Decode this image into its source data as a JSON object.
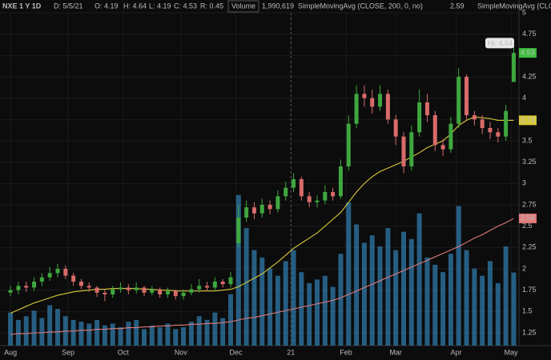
{
  "chart_data": {
    "type": "candlestick",
    "header": [
      "NXE 1 Y 1D",
      "D: 5/5/21",
      "O: 4.19",
      "H: 4.64",
      "L: 4.19",
      "C: 4.53",
      "R: 0.45"
    ],
    "volume_title": "Volume",
    "volume_label": "1,990,619",
    "sma_titles": [
      {
        "label": "SimpleMovingAvg (CLOSE, 200, 0, no)",
        "color": "#e07a7a"
      },
      {
        "label": "2.59",
        "color": "#e07a7a"
      },
      {
        "label": "SimpleMovingAvg (CLOSE,...",
        "color": "#d9c83a"
      }
    ],
    "xlim": [
      -2,
      196
    ],
    "xticks": [
      {
        "value": 2,
        "label": "Aug"
      },
      {
        "value": 24,
        "label": "Sep"
      },
      {
        "value": 45,
        "label": "Oct"
      },
      {
        "value": 67,
        "label": "Nov"
      },
      {
        "value": 88,
        "label": "Dec"
      },
      {
        "value": 109,
        "label": "21"
      },
      {
        "value": 130,
        "label": "Feb"
      },
      {
        "value": 149,
        "label": "Mar"
      },
      {
        "value": 172,
        "label": "Apr"
      },
      {
        "value": 193,
        "label": "May"
      }
    ],
    "ylim": [
      1.1,
      5.15
    ],
    "yticks": [
      1.25,
      1.5,
      1.75,
      2,
      2.25,
      2.5,
      2.75,
      3,
      3.25,
      3.5,
      3.75,
      4,
      4.25,
      4.5,
      4.75,
      5
    ],
    "vlim": [
      0,
      4400000
    ],
    "up_color": "#3fa73f",
    "down_color": "#d96b6b",
    "volume_color": "#2b6d98",
    "x": [
      2,
      5,
      8,
      11,
      14,
      17,
      20,
      23,
      26,
      29,
      32,
      35,
      38,
      41,
      44,
      47,
      50,
      53,
      56,
      59,
      62,
      65,
      68,
      71,
      74,
      77,
      80,
      83,
      86,
      89,
      92,
      95,
      98,
      101,
      104,
      107,
      110,
      113,
      116,
      119,
      122,
      125,
      128,
      131,
      134,
      137,
      140,
      143,
      146,
      149,
      152,
      155,
      158,
      161,
      164,
      167,
      170,
      173,
      176,
      179,
      182,
      185,
      188,
      191,
      194
    ],
    "open": [
      1.72,
      1.75,
      1.8,
      1.78,
      1.85,
      1.9,
      1.95,
      2.0,
      1.92,
      1.85,
      1.8,
      1.78,
      1.72,
      1.7,
      1.76,
      1.78,
      1.75,
      1.78,
      1.72,
      1.76,
      1.7,
      1.74,
      1.68,
      1.72,
      1.76,
      1.8,
      1.78,
      1.85,
      1.82,
      2.3,
      2.6,
      2.72,
      2.65,
      2.75,
      2.7,
      2.85,
      2.95,
      3.05,
      2.85,
      2.78,
      2.8,
      2.9,
      2.85,
      3.2,
      3.7,
      4.05,
      4.0,
      3.9,
      4.05,
      3.75,
      3.55,
      3.2,
      3.6,
      3.95,
      3.8,
      3.45,
      3.4,
      3.7,
      4.25,
      3.8,
      3.75,
      3.65,
      3.6,
      3.55,
      4.19
    ],
    "high": [
      1.8,
      1.85,
      1.85,
      1.9,
      1.95,
      2.02,
      2.06,
      2.04,
      1.95,
      1.88,
      1.84,
      1.8,
      1.76,
      1.8,
      1.84,
      1.82,
      1.84,
      1.8,
      1.8,
      1.78,
      1.78,
      1.76,
      1.76,
      1.82,
      1.88,
      1.85,
      1.9,
      1.88,
      1.96,
      2.75,
      2.8,
      2.78,
      2.82,
      2.8,
      2.92,
      3.02,
      3.12,
      3.08,
      2.9,
      2.86,
      2.98,
      2.95,
      3.28,
      3.8,
      4.15,
      4.15,
      4.1,
      4.15,
      4.1,
      3.8,
      3.6,
      3.68,
      4.1,
      4.05,
      3.85,
      3.52,
      3.78,
      4.35,
      4.28,
      3.85,
      3.8,
      3.72,
      3.65,
      3.92,
      4.64
    ],
    "low": [
      1.68,
      1.7,
      1.73,
      1.74,
      1.8,
      1.86,
      1.9,
      1.88,
      1.8,
      1.76,
      1.73,
      1.67,
      1.62,
      1.66,
      1.72,
      1.7,
      1.71,
      1.68,
      1.69,
      1.66,
      1.66,
      1.64,
      1.64,
      1.69,
      1.72,
      1.74,
      1.74,
      1.78,
      1.78,
      2.25,
      2.55,
      2.58,
      2.6,
      2.64,
      2.66,
      2.8,
      2.9,
      2.8,
      2.72,
      2.72,
      2.76,
      2.8,
      2.82,
      3.15,
      3.65,
      3.9,
      3.82,
      3.85,
      3.7,
      3.45,
      3.12,
      3.15,
      3.55,
      3.72,
      3.38,
      3.32,
      3.36,
      3.65,
      3.75,
      3.68,
      3.58,
      3.52,
      3.48,
      3.5,
      4.19
    ],
    "close": [
      1.75,
      1.8,
      1.78,
      1.85,
      1.9,
      1.95,
      2.0,
      1.92,
      1.85,
      1.8,
      1.78,
      1.72,
      1.7,
      1.76,
      1.78,
      1.75,
      1.78,
      1.72,
      1.76,
      1.7,
      1.74,
      1.68,
      1.72,
      1.76,
      1.8,
      1.78,
      1.85,
      1.82,
      1.9,
      2.6,
      2.72,
      2.65,
      2.75,
      2.7,
      2.85,
      2.95,
      3.05,
      2.85,
      2.78,
      2.8,
      2.9,
      2.85,
      3.2,
      3.7,
      4.05,
      4.0,
      3.9,
      4.05,
      3.75,
      3.55,
      3.2,
      3.6,
      3.95,
      3.8,
      3.45,
      3.4,
      3.7,
      4.25,
      3.8,
      3.75,
      3.65,
      3.6,
      3.55,
      3.85,
      4.53
    ],
    "volume": [
      900000,
      700000,
      800000,
      950000,
      750000,
      1100000,
      1000000,
      800000,
      700000,
      650000,
      600000,
      700000,
      550000,
      600000,
      500000,
      650000,
      700000,
      450000,
      550000,
      500000,
      600000,
      450000,
      500000,
      650000,
      800000,
      700000,
      900000,
      750000,
      1400000,
      4100000,
      3200000,
      2600000,
      2400000,
      2100000,
      1900000,
      2300000,
      2600000,
      2000000,
      1700000,
      1800000,
      1900000,
      1600000,
      2500000,
      3900000,
      3300000,
      2800000,
      3000000,
      2700000,
      3200000,
      2600000,
      3100000,
      2900000,
      3600000,
      2400000,
      2200000,
      2000000,
      2500000,
      3800000,
      2600000,
      2100000,
      1900000,
      2300000,
      1700000,
      2700000,
      1990619
    ],
    "series": [
      {
        "color": "#d9c83a",
        "values": [
          1.48,
          1.52,
          1.56,
          1.6,
          1.63,
          1.66,
          1.69,
          1.71,
          1.73,
          1.74,
          1.75,
          1.76,
          1.76,
          1.77,
          1.77,
          1.77,
          1.77,
          1.76,
          1.76,
          1.75,
          1.75,
          1.74,
          1.74,
          1.74,
          1.74,
          1.74,
          1.74,
          1.75,
          1.76,
          1.79,
          1.84,
          1.89,
          1.94,
          2.01,
          2.08,
          2.16,
          2.24,
          2.3,
          2.36,
          2.42,
          2.5,
          2.58,
          2.66,
          2.78,
          2.9,
          3.0,
          3.08,
          3.14,
          3.18,
          3.22,
          3.26,
          3.31,
          3.36,
          3.42,
          3.46,
          3.5,
          3.58,
          3.68,
          3.74,
          3.78,
          3.77,
          3.76,
          3.74,
          3.74,
          3.74
        ]
      },
      {
        "color": "#e07a7a",
        "values": [
          1.23,
          1.24,
          1.24,
          1.25,
          1.25,
          1.26,
          1.26,
          1.27,
          1.27,
          1.28,
          1.28,
          1.29,
          1.29,
          1.3,
          1.3,
          1.31,
          1.31,
          1.32,
          1.32,
          1.33,
          1.33,
          1.34,
          1.34,
          1.35,
          1.35,
          1.36,
          1.36,
          1.37,
          1.38,
          1.4,
          1.42,
          1.43,
          1.45,
          1.47,
          1.49,
          1.51,
          1.53,
          1.55,
          1.57,
          1.59,
          1.61,
          1.63,
          1.66,
          1.7,
          1.74,
          1.78,
          1.82,
          1.86,
          1.9,
          1.94,
          1.98,
          2.02,
          2.06,
          2.1,
          2.14,
          2.18,
          2.22,
          2.26,
          2.31,
          2.36,
          2.4,
          2.45,
          2.5,
          2.54,
          2.59
        ]
      }
    ],
    "high_label": {
      "value": 4.64,
      "label": "Hi: 4.64"
    },
    "last_labels": [
      {
        "value": 4.53,
        "color": "#3fbf3f"
      },
      {
        "value": 3.74,
        "color": "#d9c83a"
      },
      {
        "value": 2.59,
        "color": "#e07a7a"
      }
    ]
  }
}
